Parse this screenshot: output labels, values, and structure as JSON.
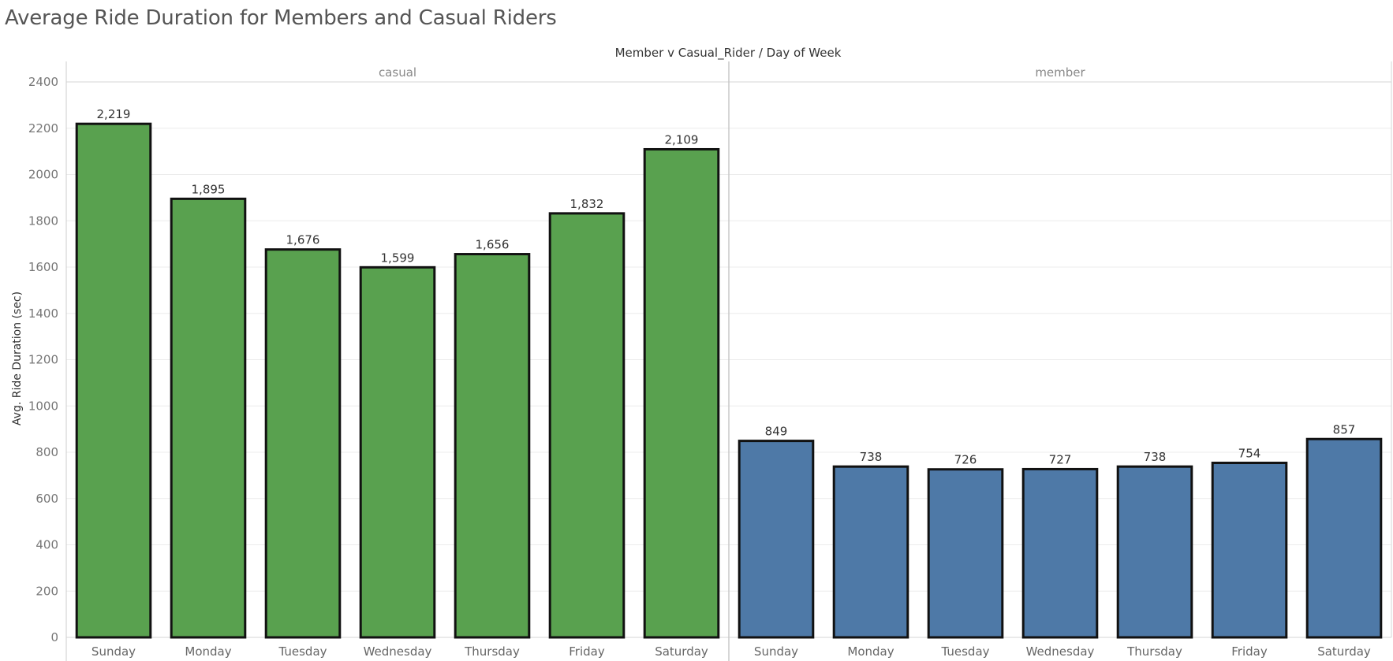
{
  "chart_data": {
    "type": "bar",
    "title": "Average Ride Duration for Members and Casual Riders",
    "header": "Member v Casual_Rider  /  Day of Week",
    "ylabel": "Avg. Ride Duration (sec)",
    "ylim": [
      0,
      2400
    ],
    "yticks": [
      0,
      200,
      400,
      600,
      800,
      1000,
      1200,
      1400,
      1600,
      1800,
      2000,
      2200,
      2400
    ],
    "grid": true,
    "categories": [
      "Sunday",
      "Monday",
      "Tuesday",
      "Wednesday",
      "Thursday",
      "Friday",
      "Saturday"
    ],
    "panels": [
      {
        "name": "casual",
        "color": "#59a14f",
        "values": [
          2219,
          1895,
          1676,
          1599,
          1656,
          1832,
          2109
        ],
        "labels": [
          "2,219",
          "1,895",
          "1,676",
          "1,599",
          "1,656",
          "1,832",
          "2,109"
        ]
      },
      {
        "name": "member",
        "color": "#4e79a7",
        "values": [
          849,
          738,
          726,
          727,
          738,
          754,
          857
        ],
        "labels": [
          "849",
          "738",
          "726",
          "727",
          "738",
          "754",
          "857"
        ]
      }
    ]
  }
}
